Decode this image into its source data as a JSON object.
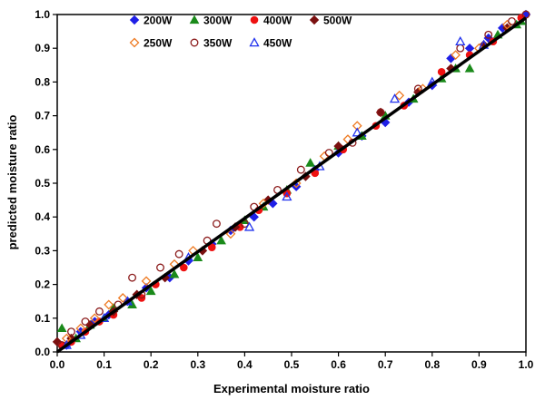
{
  "chart_data": {
    "type": "scatter",
    "xlabel": "Experimental moisture ratio",
    "ylabel": "predicted moisture ratio",
    "xlim": [
      0,
      1
    ],
    "ylim": [
      0,
      1
    ],
    "x_ticks": [
      "0.0",
      "0.1",
      "0.2",
      "0.3",
      "0.4",
      "0.5",
      "0.6",
      "0.7",
      "0.8",
      "0.9",
      "1.0"
    ],
    "y_ticks": [
      "0.0",
      "0.1",
      "0.2",
      "0.3",
      "0.4",
      "0.5",
      "0.6",
      "0.7",
      "0.8",
      "0.9",
      "1.0"
    ],
    "grid": false,
    "legend_position": "top-left",
    "fit_line": {
      "x": [
        0.0,
        1.0
      ],
      "y": [
        0.0,
        0.99
      ],
      "color": "#000000"
    },
    "series": [
      {
        "name": "200W",
        "marker": "diamond-filled",
        "color": "#1f1fe6",
        "points": [
          [
            0.02,
            0.02
          ],
          [
            0.05,
            0.06
          ],
          [
            0.08,
            0.09
          ],
          [
            0.11,
            0.11
          ],
          [
            0.15,
            0.15
          ],
          [
            0.19,
            0.19
          ],
          [
            0.24,
            0.22
          ],
          [
            0.28,
            0.27
          ],
          [
            0.33,
            0.32
          ],
          [
            0.37,
            0.36
          ],
          [
            0.42,
            0.4
          ],
          [
            0.46,
            0.44
          ],
          [
            0.51,
            0.49
          ],
          [
            0.55,
            0.54
          ],
          [
            0.6,
            0.59
          ],
          [
            0.65,
            0.64
          ],
          [
            0.7,
            0.68
          ],
          [
            0.75,
            0.74
          ],
          [
            0.8,
            0.79
          ],
          [
            0.84,
            0.87
          ],
          [
            0.88,
            0.9
          ],
          [
            0.92,
            0.93
          ],
          [
            0.95,
            0.96
          ],
          [
            1.0,
            1.0
          ]
        ]
      },
      {
        "name": "300W",
        "marker": "triangle-filled",
        "color": "#1a8a1a",
        "points": [
          [
            0.01,
            0.07
          ],
          [
            0.04,
            0.04
          ],
          [
            0.07,
            0.08
          ],
          [
            0.1,
            0.1
          ],
          [
            0.12,
            0.13
          ],
          [
            0.16,
            0.14
          ],
          [
            0.2,
            0.18
          ],
          [
            0.25,
            0.23
          ],
          [
            0.3,
            0.28
          ],
          [
            0.35,
            0.33
          ],
          [
            0.4,
            0.39
          ],
          [
            0.44,
            0.43
          ],
          [
            0.49,
            0.48
          ],
          [
            0.54,
            0.56
          ],
          [
            0.6,
            0.61
          ],
          [
            0.65,
            0.64
          ],
          [
            0.7,
            0.7
          ],
          [
            0.76,
            0.75
          ],
          [
            0.82,
            0.81
          ],
          [
            0.85,
            0.84
          ],
          [
            0.88,
            0.84
          ],
          [
            0.94,
            0.94
          ],
          [
            0.98,
            0.97
          ],
          [
            0.99,
            0.98
          ]
        ]
      },
      {
        "name": "400W",
        "marker": "circle-filled",
        "color": "#ee1111",
        "points": [
          [
            0.01,
            0.02
          ],
          [
            0.03,
            0.03
          ],
          [
            0.06,
            0.06
          ],
          [
            0.09,
            0.09
          ],
          [
            0.12,
            0.11
          ],
          [
            0.18,
            0.16
          ],
          [
            0.21,
            0.2
          ],
          [
            0.27,
            0.25
          ],
          [
            0.33,
            0.31
          ],
          [
            0.39,
            0.37
          ],
          [
            0.43,
            0.42
          ],
          [
            0.49,
            0.47
          ],
          [
            0.55,
            0.53
          ],
          [
            0.61,
            0.6
          ],
          [
            0.68,
            0.67
          ],
          [
            0.74,
            0.73
          ],
          [
            0.82,
            0.83
          ],
          [
            0.88,
            0.88
          ],
          [
            0.93,
            0.92
          ],
          [
            0.99,
            0.99
          ]
        ]
      },
      {
        "name": "500W",
        "marker": "diamond-filled",
        "color": "#7a1010",
        "points": [
          [
            0.0,
            0.03
          ],
          [
            0.03,
            0.04
          ],
          [
            0.07,
            0.08
          ],
          [
            0.12,
            0.12
          ],
          [
            0.17,
            0.17
          ],
          [
            0.23,
            0.22
          ],
          [
            0.31,
            0.3
          ],
          [
            0.38,
            0.37
          ],
          [
            0.45,
            0.45
          ],
          [
            0.53,
            0.52
          ],
          [
            0.6,
            0.61
          ],
          [
            0.69,
            0.71
          ],
          [
            0.77,
            0.77
          ],
          [
            0.84,
            0.84
          ],
          [
            0.91,
            0.91
          ],
          [
            0.96,
            0.96
          ]
        ]
      },
      {
        "name": "250W",
        "marker": "diamond-open",
        "color": "#ee7a22",
        "points": [
          [
            0.02,
            0.04
          ],
          [
            0.05,
            0.07
          ],
          [
            0.08,
            0.1
          ],
          [
            0.11,
            0.14
          ],
          [
            0.14,
            0.16
          ],
          [
            0.19,
            0.21
          ],
          [
            0.25,
            0.26
          ],
          [
            0.29,
            0.3
          ],
          [
            0.37,
            0.35
          ],
          [
            0.44,
            0.44
          ],
          [
            0.51,
            0.5
          ],
          [
            0.57,
            0.58
          ],
          [
            0.62,
            0.63
          ],
          [
            0.64,
            0.67
          ],
          [
            0.73,
            0.76
          ],
          [
            0.78,
            0.78
          ],
          [
            0.85,
            0.88
          ],
          [
            0.9,
            0.9
          ],
          [
            0.96,
            0.97
          ]
        ]
      },
      {
        "name": "350W",
        "marker": "circle-open",
        "color": "#8b1a1a",
        "points": [
          [
            0.01,
            0.02
          ],
          [
            0.03,
            0.06
          ],
          [
            0.06,
            0.09
          ],
          [
            0.09,
            0.12
          ],
          [
            0.13,
            0.14
          ],
          [
            0.16,
            0.22
          ],
          [
            0.18,
            0.17
          ],
          [
            0.22,
            0.25
          ],
          [
            0.26,
            0.29
          ],
          [
            0.32,
            0.33
          ],
          [
            0.34,
            0.38
          ],
          [
            0.4,
            0.38
          ],
          [
            0.42,
            0.43
          ],
          [
            0.47,
            0.48
          ],
          [
            0.52,
            0.54
          ],
          [
            0.58,
            0.59
          ],
          [
            0.63,
            0.62
          ],
          [
            0.69,
            0.71
          ],
          [
            0.77,
            0.78
          ],
          [
            0.86,
            0.9
          ],
          [
            0.92,
            0.94
          ],
          [
            0.97,
            0.98
          ],
          [
            1.0,
            1.0
          ]
        ]
      },
      {
        "name": "450W",
        "marker": "triangle-open",
        "color": "#2233ee",
        "points": [
          [
            0.02,
            0.02
          ],
          [
            0.05,
            0.05
          ],
          [
            0.1,
            0.1
          ],
          [
            0.15,
            0.15
          ],
          [
            0.28,
            0.28
          ],
          [
            0.41,
            0.37
          ],
          [
            0.49,
            0.46
          ],
          [
            0.56,
            0.55
          ],
          [
            0.64,
            0.65
          ],
          [
            0.72,
            0.75
          ],
          [
            0.8,
            0.8
          ],
          [
            0.86,
            0.92
          ],
          [
            0.91,
            0.91
          ]
        ]
      }
    ]
  }
}
